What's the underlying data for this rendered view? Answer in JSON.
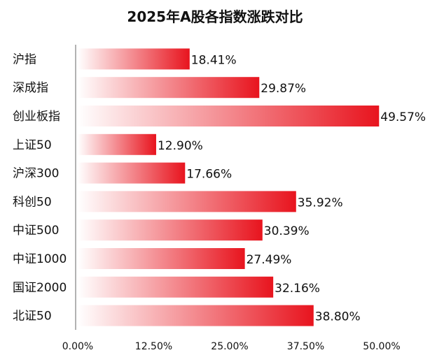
{
  "chart_data": {
    "type": "bar",
    "orientation": "horizontal",
    "title": "2025年A股各指数涨跌对比",
    "categories": [
      "沪指",
      "深成指",
      "创业板指",
      "上证50",
      "沪深300",
      "科创50",
      "中证500",
      "中证1000",
      "国证2000",
      "北证50"
    ],
    "values": [
      18.41,
      29.87,
      49.57,
      12.9,
      17.66,
      35.92,
      30.39,
      27.49,
      32.16,
      38.8
    ],
    "data_labels": [
      "18.41%",
      "29.87%",
      "49.57%",
      "12.90%",
      "17.66%",
      "35.92%",
      "30.39%",
      "27.49%",
      "32.16%",
      "38.80%"
    ],
    "xticks": [
      "0.00%",
      "12.50%",
      "25.00%",
      "37.50%",
      "50.00%"
    ],
    "xtick_values": [
      0,
      12.5,
      25,
      37.5,
      50
    ],
    "xlim": [
      0,
      50
    ],
    "xlabel": "",
    "ylabel": "",
    "grid": false,
    "bar_gradient": [
      "#ffffff",
      "#e8141e"
    ]
  }
}
